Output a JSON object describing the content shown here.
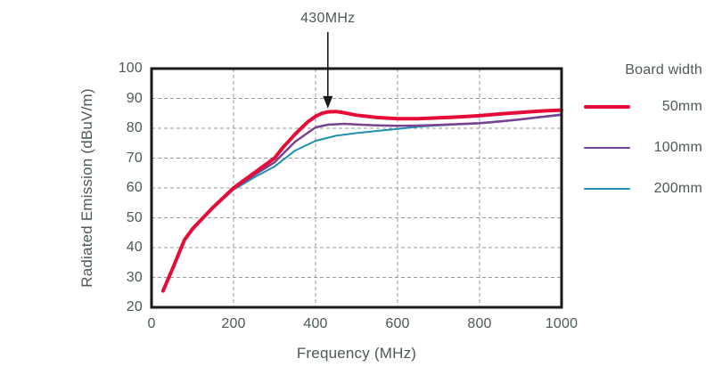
{
  "chart_data": {
    "type": "line",
    "xlabel": "Frequency (MHz)",
    "ylabel": "Radiated Emission (dBuV/m)",
    "xlim": [
      0,
      1000
    ],
    "ylim": [
      20,
      100
    ],
    "x_tick_values": [
      0,
      200,
      400,
      600,
      800,
      1000
    ],
    "x_tick_labels": [
      "0",
      "200",
      "400",
      "600",
      "800",
      "1000"
    ],
    "y_tick_values": [
      20,
      30,
      40,
      50,
      60,
      70,
      80,
      90,
      100
    ],
    "y_tick_labels": [
      "20",
      "30",
      "40",
      "50",
      "60",
      "70",
      "80",
      "90",
      "100"
    ],
    "grid": {
      "style": "dashed",
      "color": "#999999"
    },
    "frame_color": "#1a1a1a",
    "text_color": "#4d5858",
    "annotation": {
      "text": "430MHz",
      "x_mhz": 430,
      "arrow_tip_db": 86.6,
      "arrow_color": "#1a1a1a"
    },
    "legend": {
      "title": "Board width",
      "position": "right"
    },
    "series": [
      {
        "name": "50mm",
        "color": "#e60c38",
        "width": 4,
        "x": [
          28,
          50,
          80,
          100,
          150,
          200,
          250,
          300,
          320,
          350,
          380,
          400,
          415,
          430,
          450,
          470,
          500,
          550,
          600,
          650,
          700,
          750,
          800,
          850,
          900,
          950,
          1000
        ],
        "y": [
          25.5,
          32.5,
          42.5,
          46.3,
          53.5,
          60,
          65,
          70,
          73.5,
          78,
          82,
          84,
          85,
          85.5,
          85.6,
          85.2,
          84.4,
          83.6,
          83.2,
          83.2,
          83.5,
          83.8,
          84.2,
          84.8,
          85.3,
          85.8,
          86.1
        ]
      },
      {
        "name": "100mm",
        "color": "#7a4291",
        "width": 2.5,
        "x": [
          28,
          50,
          80,
          100,
          150,
          200,
          250,
          300,
          350,
          400,
          430,
          470,
          510,
          550,
          600,
          650,
          700,
          750,
          800,
          850,
          900,
          950,
          1000
        ],
        "y": [
          25.5,
          32.4,
          42.4,
          46.1,
          53.3,
          59.7,
          64.3,
          68.6,
          75.5,
          80.3,
          81.2,
          81.5,
          81.2,
          81.0,
          80.8,
          80.9,
          81.1,
          81.4,
          81.7,
          82.3,
          83.0,
          83.8,
          84.6
        ]
      },
      {
        "name": "200mm",
        "color": "#1f8fad",
        "width": 2,
        "x": [
          28,
          50,
          80,
          100,
          150,
          200,
          250,
          300,
          350,
          400,
          450,
          500,
          550,
          600,
          650,
          700,
          750,
          800,
          850,
          900,
          950,
          1000
        ],
        "y": [
          25.5,
          32.3,
          42.3,
          45.9,
          53.1,
          59.4,
          63.5,
          67.2,
          72.5,
          75.8,
          77.5,
          78.4,
          79.1,
          79.8,
          80.5,
          81.0,
          81.3,
          81.6,
          82.2,
          82.9,
          83.7,
          84.4
        ]
      }
    ]
  }
}
